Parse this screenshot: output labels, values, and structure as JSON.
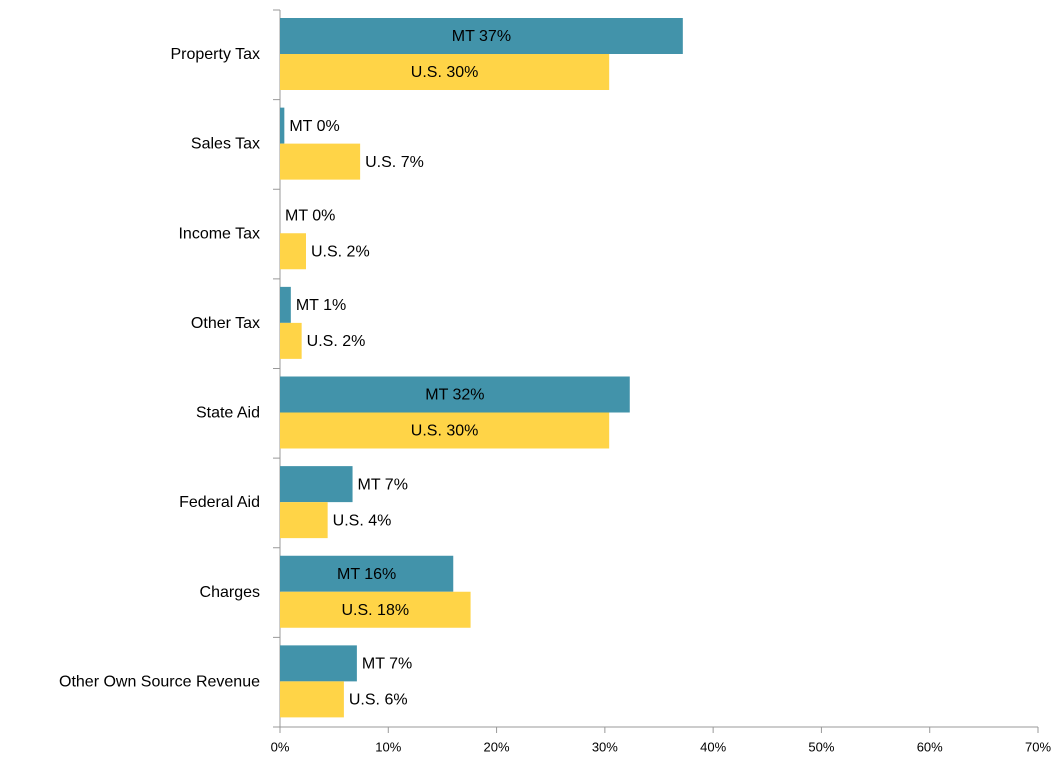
{
  "chart_data": {
    "type": "hbar",
    "categories": [
      "Property Tax",
      "Sales Tax",
      "Income Tax",
      "Other Tax",
      "State Aid",
      "Federal Aid",
      "Charges",
      "Other Own Source Revenue"
    ],
    "series": [
      {
        "color": "#4293aa",
        "values": [
          37.2,
          0.4,
          0,
          1.0,
          32.3,
          6.7,
          16.0,
          7.1
        ],
        "value_labels": [
          "MT 37%",
          "MT 0%",
          "MT 0%",
          "MT 1%",
          "MT 32%",
          "MT 7%",
          "MT 16%",
          "MT 7%"
        ]
      },
      {
        "color": "#ffd447",
        "values": [
          30.4,
          7.4,
          2.4,
          2.0,
          30.4,
          4.4,
          17.6,
          5.9
        ],
        "value_labels": [
          "U.S. 30%",
          "U.S. 7%",
          "U.S. 2%",
          "U.S. 2%",
          "U.S. 30%",
          "U.S. 4%",
          "U.S. 18%",
          "U.S. 6%"
        ]
      }
    ],
    "xlim": [
      0,
      70
    ],
    "xticks": [
      {
        "value": 0,
        "label": "0%"
      },
      {
        "value": 10,
        "label": "10%"
      },
      {
        "value": 20,
        "label": "20%"
      },
      {
        "value": 30,
        "label": "30%"
      },
      {
        "value": 40,
        "label": "40%"
      },
      {
        "value": 50,
        "label": "50%"
      },
      {
        "value": 60,
        "label": "60%"
      },
      {
        "value": 70,
        "label": "70%"
      }
    ]
  }
}
